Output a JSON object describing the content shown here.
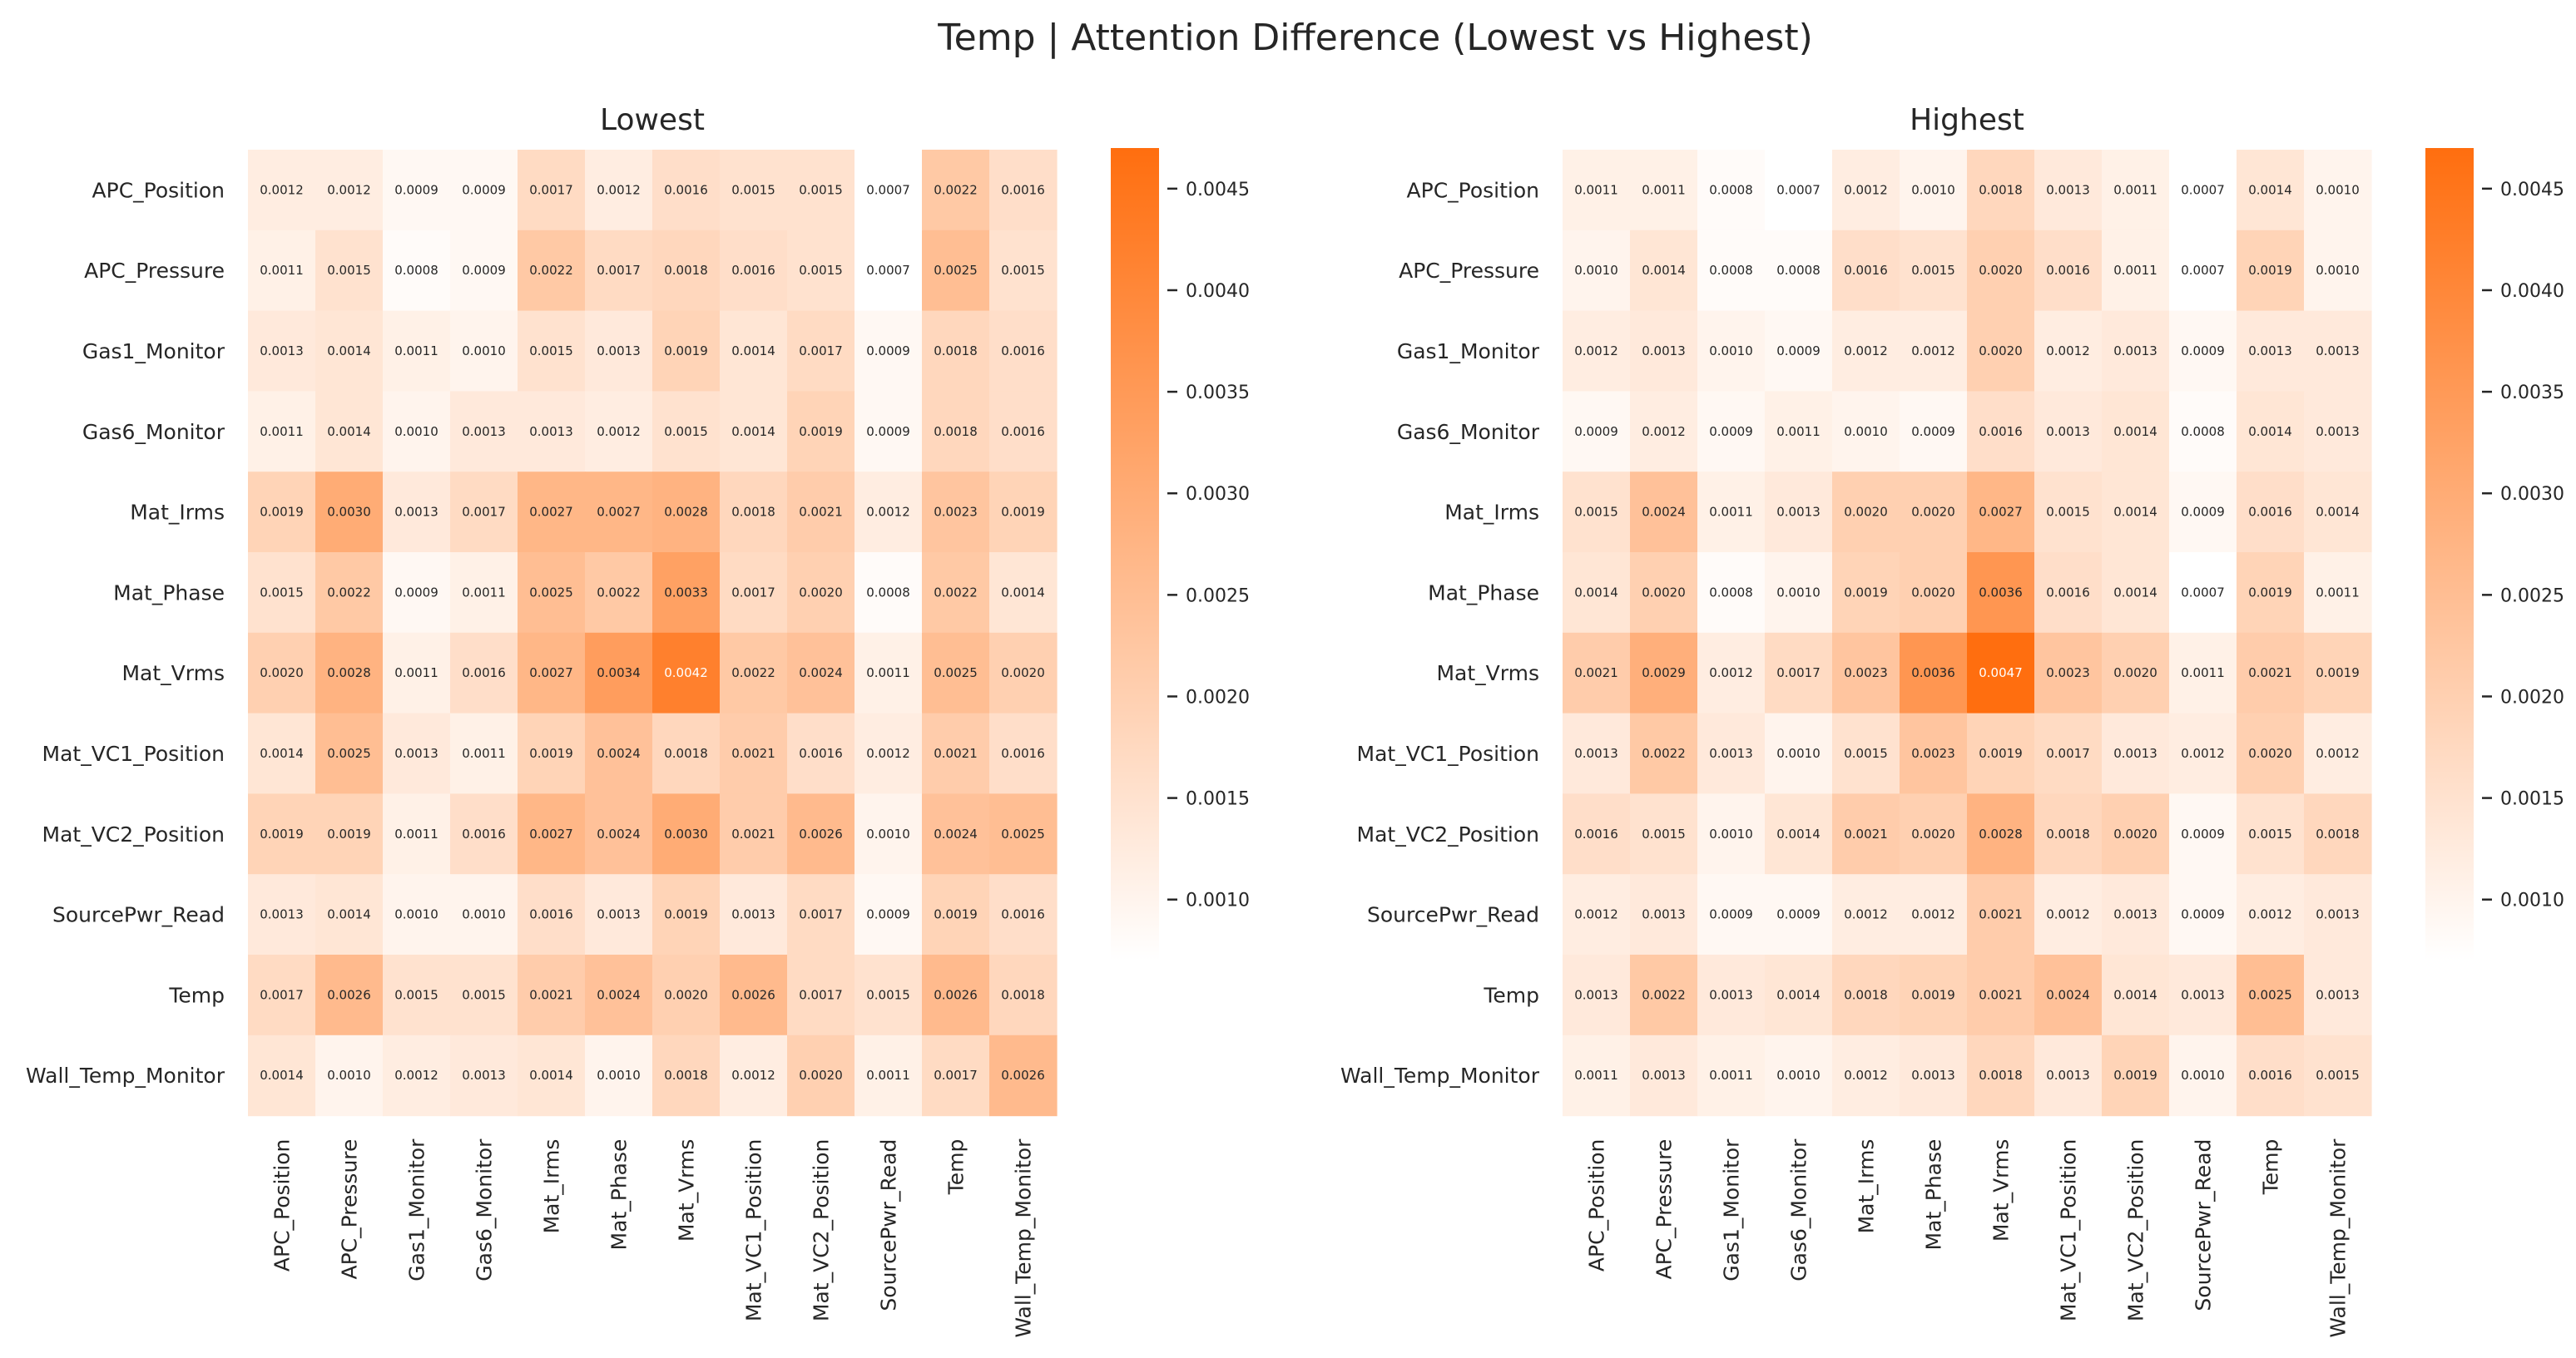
{
  "title": "Temp | Attention Difference (Lowest vs Highest)",
  "colors": {
    "low": "#ffffff",
    "high": "#ff6e0f",
    "text_dark": "#262626",
    "text_light": "#ffffff",
    "tick": "#262626"
  },
  "chart_data": [
    {
      "type": "heatmap",
      "title": "Lowest",
      "rows": [
        "APC_Position",
        "APC_Pressure",
        "Gas1_Monitor",
        "Gas6_Monitor",
        "Mat_Irms",
        "Mat_Phase",
        "Mat_Vrms",
        "Mat_VC1_Position",
        "Mat_VC2_Position",
        "SourcePwr_Read",
        "Temp",
        "Wall_Temp_Monitor"
      ],
      "columns": [
        "APC_Position",
        "APC_Pressure",
        "Gas1_Monitor",
        "Gas6_Monitor",
        "Mat_Irms",
        "Mat_Phase",
        "Mat_Vrms",
        "Mat_VC1_Position",
        "Mat_VC2_Position",
        "SourcePwr_Read",
        "Temp",
        "Wall_Temp_Monitor"
      ],
      "values": [
        [
          "0.0012",
          "0.0012",
          "0.0009",
          "0.0009",
          "0.0017",
          "0.0012",
          "0.0016",
          "0.0015",
          "0.0015",
          "0.0007",
          "0.0022",
          "0.0016"
        ],
        [
          "0.0011",
          "0.0015",
          "0.0008",
          "0.0009",
          "0.0022",
          "0.0017",
          "0.0018",
          "0.0016",
          "0.0015",
          "0.0007",
          "0.0025",
          "0.0015"
        ],
        [
          "0.0013",
          "0.0014",
          "0.0011",
          "0.0010",
          "0.0015",
          "0.0013",
          "0.0019",
          "0.0014",
          "0.0017",
          "0.0009",
          "0.0018",
          "0.0016"
        ],
        [
          "0.0011",
          "0.0014",
          "0.0010",
          "0.0013",
          "0.0013",
          "0.0012",
          "0.0015",
          "0.0014",
          "0.0019",
          "0.0009",
          "0.0018",
          "0.0016"
        ],
        [
          "0.0019",
          "0.0030",
          "0.0013",
          "0.0017",
          "0.0027",
          "0.0027",
          "0.0028",
          "0.0018",
          "0.0021",
          "0.0012",
          "0.0023",
          "0.0019"
        ],
        [
          "0.0015",
          "0.0022",
          "0.0009",
          "0.0011",
          "0.0025",
          "0.0022",
          "0.0033",
          "0.0017",
          "0.0020",
          "0.0008",
          "0.0022",
          "0.0014"
        ],
        [
          "0.0020",
          "0.0028",
          "0.0011",
          "0.0016",
          "0.0027",
          "0.0034",
          "0.0042",
          "0.0022",
          "0.0024",
          "0.0011",
          "0.0025",
          "0.0020"
        ],
        [
          "0.0014",
          "0.0025",
          "0.0013",
          "0.0011",
          "0.0019",
          "0.0024",
          "0.0018",
          "0.0021",
          "0.0016",
          "0.0012",
          "0.0021",
          "0.0016"
        ],
        [
          "0.0019",
          "0.0019",
          "0.0011",
          "0.0016",
          "0.0027",
          "0.0024",
          "0.0030",
          "0.0021",
          "0.0026",
          "0.0010",
          "0.0024",
          "0.0025"
        ],
        [
          "0.0013",
          "0.0014",
          "0.0010",
          "0.0010",
          "0.0016",
          "0.0013",
          "0.0019",
          "0.0013",
          "0.0017",
          "0.0009",
          "0.0019",
          "0.0016"
        ],
        [
          "0.0017",
          "0.0026",
          "0.0015",
          "0.0015",
          "0.0021",
          "0.0024",
          "0.0020",
          "0.0026",
          "0.0017",
          "0.0015",
          "0.0026",
          "0.0018"
        ],
        [
          "0.0014",
          "0.0010",
          "0.0012",
          "0.0013",
          "0.0014",
          "0.0010",
          "0.0018",
          "0.0012",
          "0.0020",
          "0.0011",
          "0.0017",
          "0.0026"
        ]
      ],
      "colorbar": {
        "min": 0.0007,
        "max": 0.0047,
        "ticks": [
          "0.0010",
          "0.0015",
          "0.0020",
          "0.0025",
          "0.0030",
          "0.0035",
          "0.0040",
          "0.0045"
        ]
      }
    },
    {
      "type": "heatmap",
      "title": "Highest",
      "rows": [
        "APC_Position",
        "APC_Pressure",
        "Gas1_Monitor",
        "Gas6_Monitor",
        "Mat_Irms",
        "Mat_Phase",
        "Mat_Vrms",
        "Mat_VC1_Position",
        "Mat_VC2_Position",
        "SourcePwr_Read",
        "Temp",
        "Wall_Temp_Monitor"
      ],
      "columns": [
        "APC_Position",
        "APC_Pressure",
        "Gas1_Monitor",
        "Gas6_Monitor",
        "Mat_Irms",
        "Mat_Phase",
        "Mat_Vrms",
        "Mat_VC1_Position",
        "Mat_VC2_Position",
        "SourcePwr_Read",
        "Temp",
        "Wall_Temp_Monitor"
      ],
      "values": [
        [
          "0.0011",
          "0.0011",
          "0.0008",
          "0.0007",
          "0.0012",
          "0.0010",
          "0.0018",
          "0.0013",
          "0.0011",
          "0.0007",
          "0.0014",
          "0.0010"
        ],
        [
          "0.0010",
          "0.0014",
          "0.0008",
          "0.0008",
          "0.0016",
          "0.0015",
          "0.0020",
          "0.0016",
          "0.0011",
          "0.0007",
          "0.0019",
          "0.0010"
        ],
        [
          "0.0012",
          "0.0013",
          "0.0010",
          "0.0009",
          "0.0012",
          "0.0012",
          "0.0020",
          "0.0012",
          "0.0013",
          "0.0009",
          "0.0013",
          "0.0013"
        ],
        [
          "0.0009",
          "0.0012",
          "0.0009",
          "0.0011",
          "0.0010",
          "0.0009",
          "0.0016",
          "0.0013",
          "0.0014",
          "0.0008",
          "0.0014",
          "0.0013"
        ],
        [
          "0.0015",
          "0.0024",
          "0.0011",
          "0.0013",
          "0.0020",
          "0.0020",
          "0.0027",
          "0.0015",
          "0.0014",
          "0.0009",
          "0.0016",
          "0.0014"
        ],
        [
          "0.0014",
          "0.0020",
          "0.0008",
          "0.0010",
          "0.0019",
          "0.0020",
          "0.0036",
          "0.0016",
          "0.0014",
          "0.0007",
          "0.0019",
          "0.0011"
        ],
        [
          "0.0021",
          "0.0029",
          "0.0012",
          "0.0017",
          "0.0023",
          "0.0036",
          "0.0047",
          "0.0023",
          "0.0020",
          "0.0011",
          "0.0021",
          "0.0019"
        ],
        [
          "0.0013",
          "0.0022",
          "0.0013",
          "0.0010",
          "0.0015",
          "0.0023",
          "0.0019",
          "0.0017",
          "0.0013",
          "0.0012",
          "0.0020",
          "0.0012"
        ],
        [
          "0.0016",
          "0.0015",
          "0.0010",
          "0.0014",
          "0.0021",
          "0.0020",
          "0.0028",
          "0.0018",
          "0.0020",
          "0.0009",
          "0.0015",
          "0.0018"
        ],
        [
          "0.0012",
          "0.0013",
          "0.0009",
          "0.0009",
          "0.0012",
          "0.0012",
          "0.0021",
          "0.0012",
          "0.0013",
          "0.0009",
          "0.0012",
          "0.0013"
        ],
        [
          "0.0013",
          "0.0022",
          "0.0013",
          "0.0014",
          "0.0018",
          "0.0019",
          "0.0021",
          "0.0024",
          "0.0014",
          "0.0013",
          "0.0025",
          "0.0013"
        ],
        [
          "0.0011",
          "0.0013",
          "0.0011",
          "0.0010",
          "0.0012",
          "0.0013",
          "0.0018",
          "0.0013",
          "0.0019",
          "0.0010",
          "0.0016",
          "0.0015"
        ]
      ],
      "colorbar": {
        "min": 0.0007,
        "max": 0.0047,
        "ticks": [
          "0.0010",
          "0.0015",
          "0.0020",
          "0.0025",
          "0.0030",
          "0.0035",
          "0.0040",
          "0.0045"
        ]
      }
    }
  ]
}
